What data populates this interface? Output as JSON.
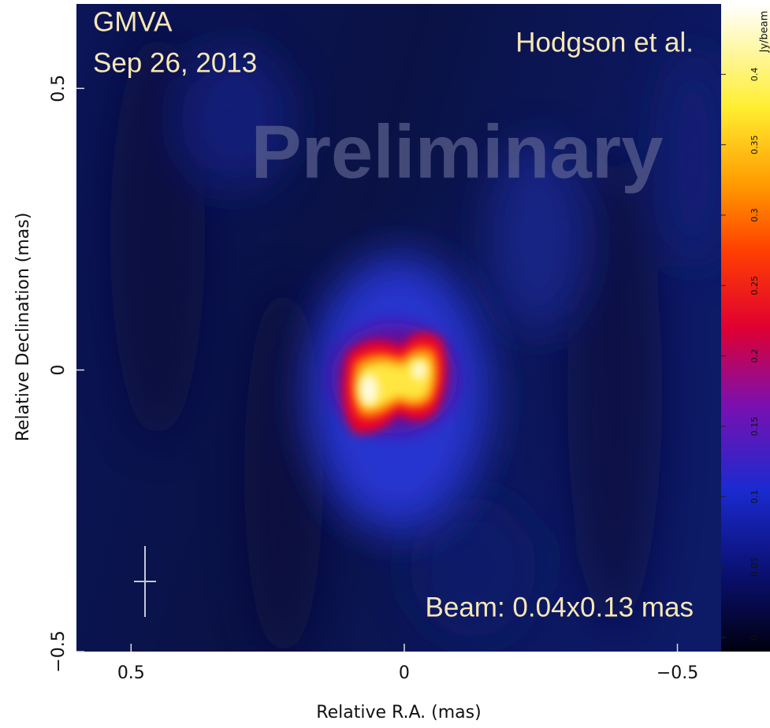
{
  "chart_data": {
    "type": "image",
    "xlabel": "Relative R.A. (mas)",
    "ylabel": "Relative Declination (mas)",
    "xlim": [
      0.6,
      -0.58
    ],
    "xticks": [
      0.5,
      0,
      {
        "value": -0.5,
        "label": "−0.5"
      }
    ],
    "ylim": [
      -0.5,
      0.65
    ],
    "yticks": [
      {
        "value": -0.5,
        "label": "−0.5"
      },
      0,
      0.5
    ],
    "colorbar": {
      "label": "Jy/beam",
      "lim": [
        -0.01,
        0.45
      ],
      "ticks": [
        0,
        0.05,
        0.1,
        0.15,
        0.2,
        0.25,
        0.3,
        0.35,
        0.4
      ]
    },
    "annotations": [
      "GMVA",
      "Sep 26, 2013",
      "Hodgson et al.",
      "Preliminary",
      "Beam: 0.04x0.13 mas"
    ]
  }
}
